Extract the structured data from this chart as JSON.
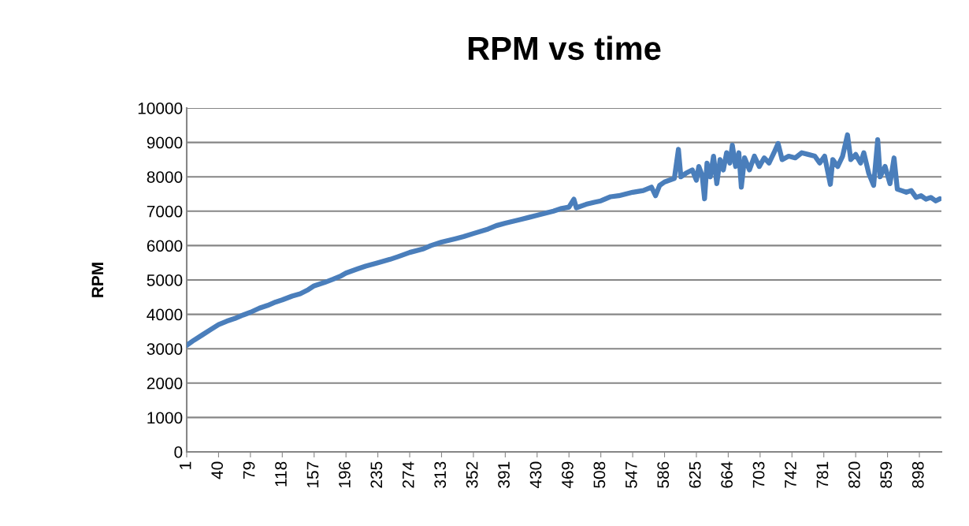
{
  "chart_data": {
    "type": "line",
    "title": "RPM vs time",
    "ylabel": "RPM",
    "x": [
      1,
      10,
      20,
      30,
      40,
      50,
      60,
      70,
      79,
      90,
      100,
      110,
      118,
      130,
      140,
      150,
      157,
      170,
      180,
      190,
      196,
      210,
      220,
      235,
      250,
      260,
      274,
      290,
      300,
      313,
      330,
      340,
      352,
      370,
      380,
      391,
      410,
      420,
      430,
      450,
      460,
      469,
      475,
      478,
      490,
      500,
      508,
      520,
      530,
      547,
      560,
      570,
      575,
      580,
      586,
      592,
      598,
      603,
      606,
      612,
      620,
      625,
      628,
      632,
      635,
      638,
      642,
      646,
      650,
      654,
      658,
      662,
      666,
      669,
      673,
      677,
      680,
      684,
      690,
      696,
      702,
      708,
      714,
      720,
      725,
      730,
      738,
      746,
      754,
      762,
      770,
      776,
      782,
      789,
      792,
      798,
      804,
      810,
      814,
      820,
      826,
      830,
      836,
      842,
      847,
      850,
      856,
      862,
      867,
      871,
      876,
      882,
      888,
      894,
      900,
      906,
      912,
      918,
      923
    ],
    "series": [
      {
        "color": "#4a7ebb",
        "values": [
          3100,
          3250,
          3400,
          3550,
          3700,
          3800,
          3880,
          3980,
          4060,
          4180,
          4260,
          4360,
          4420,
          4530,
          4600,
          4720,
          4830,
          4930,
          5020,
          5120,
          5200,
          5320,
          5400,
          5500,
          5600,
          5680,
          5800,
          5900,
          6000,
          6100,
          6200,
          6260,
          6350,
          6480,
          6580,
          6650,
          6760,
          6820,
          6880,
          7000,
          7080,
          7120,
          7350,
          7100,
          7200,
          7260,
          7300,
          7420,
          7450,
          7550,
          7600,
          7700,
          7450,
          7750,
          7850,
          7900,
          7950,
          8800,
          8000,
          8100,
          8200,
          7900,
          8300,
          8050,
          7360,
          8400,
          8000,
          8600,
          7800,
          8500,
          8200,
          8700,
          8400,
          8920,
          8300,
          8700,
          7700,
          8550,
          8200,
          8600,
          8300,
          8550,
          8400,
          8700,
          8970,
          8500,
          8600,
          8550,
          8700,
          8650,
          8600,
          8400,
          8600,
          7780,
          8500,
          8300,
          8600,
          9220,
          8500,
          8650,
          8400,
          8700,
          8100,
          7750,
          9080,
          8000,
          8300,
          7800,
          8550,
          7640,
          7600,
          7550,
          7600,
          7400,
          7450,
          7350,
          7400,
          7300,
          7360
        ]
      }
    ],
    "xlim": [
      1,
      925
    ],
    "xticks": [
      1,
      40,
      79,
      118,
      157,
      196,
      235,
      274,
      313,
      352,
      391,
      430,
      469,
      508,
      547,
      586,
      625,
      664,
      703,
      742,
      781,
      820,
      859,
      898
    ],
    "ylim": [
      0,
      10000
    ],
    "yticks": [
      0,
      1000,
      2000,
      3000,
      4000,
      5000,
      6000,
      7000,
      8000,
      9000,
      10000
    ],
    "grid": "y",
    "legend": false,
    "line_style": "solid",
    "marker": "none"
  }
}
